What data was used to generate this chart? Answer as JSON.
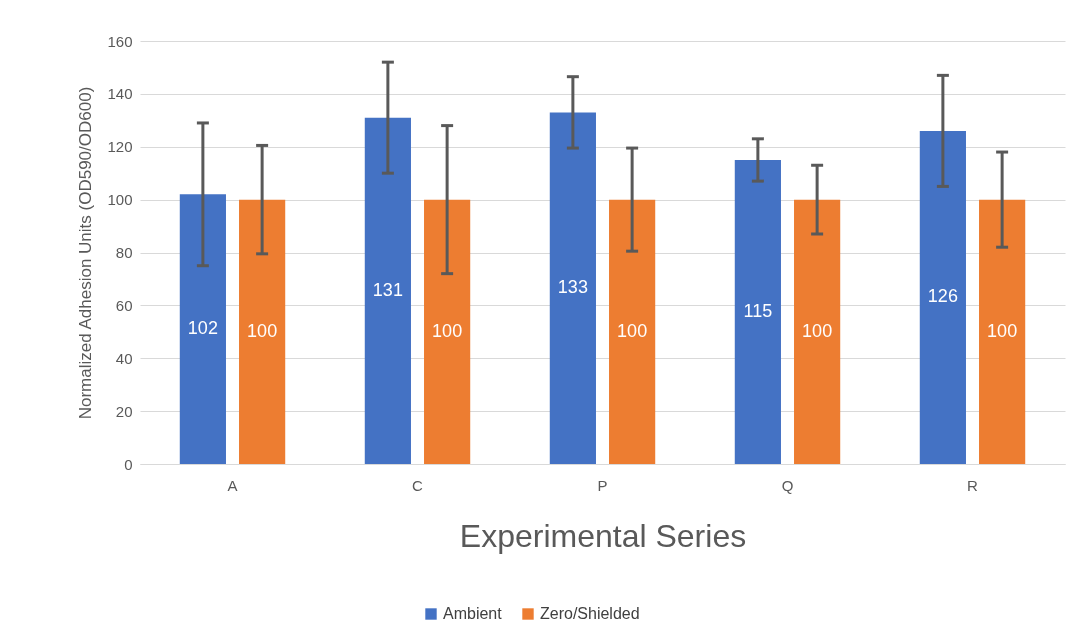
{
  "chart_data": {
    "type": "bar",
    "xlabel": "Experimental Series",
    "ylabel": "Normalized Adhesion Units (OD590/OD600)",
    "categories": [
      "A",
      "C",
      "P",
      "Q",
      "R"
    ],
    "series": [
      {
        "name": "Ambient",
        "color": "#4472c4",
        "values": [
          102,
          131,
          133,
          115,
          126
        ],
        "errors": [
          27,
          21,
          13.5,
          8,
          21
        ]
      },
      {
        "name": "Zero/Shielded",
        "color": "#ed7d31",
        "values": [
          100,
          100,
          100,
          100,
          100
        ],
        "errors": [
          20.5,
          28,
          19.5,
          13,
          18
        ]
      }
    ],
    "ylim": [
      0,
      160
    ],
    "yticks": [
      0,
      20,
      40,
      60,
      80,
      100,
      120,
      140,
      160
    ],
    "grid": "y",
    "legend": "bottom",
    "data_labels": true
  }
}
